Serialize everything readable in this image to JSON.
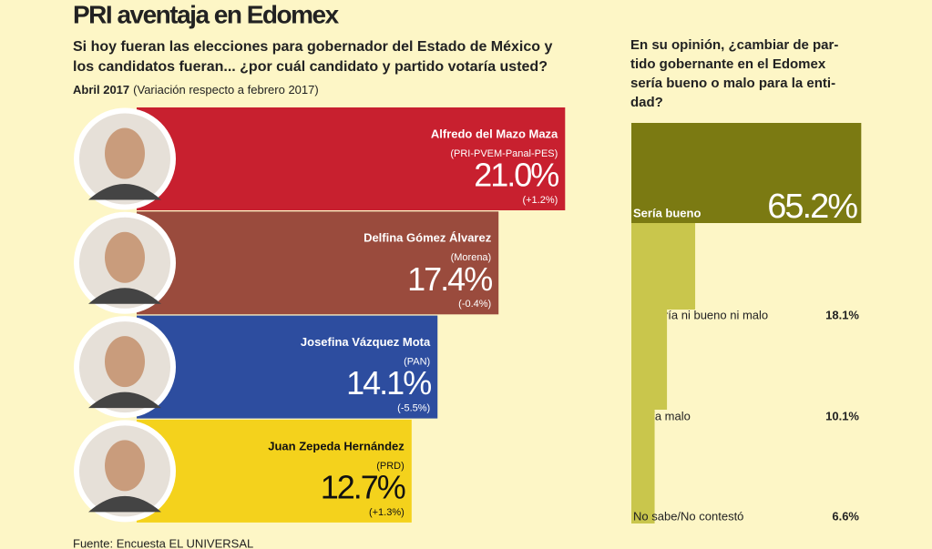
{
  "title": "PRI aventaja en Edomex",
  "source": "Fuente: Encuesta EL UNIVERSAL",
  "chart_data": [
    {
      "type": "hbar",
      "title": [
        "Si hoy fueran las elecciones para gobernador del Estado de México y",
        "los candidatos fueran... ¿por cuál candidato y partido votaría usted?"
      ],
      "date": "Abril 2017",
      "subtitle": "(Variación respecto a febrero 2017)",
      "categories": [
        "Alfredo del Mazo Maza",
        "Delfina Gómez Álvarez",
        "Josefina Vázquez Mota",
        "Juan Zepeda Hernández"
      ],
      "parties": [
        "(PRI-PVEM-Panal-PES)",
        "(Morena)",
        "(PAN)",
        "(PRD)"
      ],
      "values": [
        21.0,
        17.4,
        14.1,
        12.7
      ],
      "value_labels": [
        "21.0%",
        "17.4%",
        "14.1%",
        "12.7%"
      ],
      "changes": [
        "(+1.2%)",
        "(-0.4%)",
        "(-5.5%)",
        "(+1.3%)"
      ],
      "colors": [
        "#c8202f",
        "#9a4b3d",
        "#2d4d9f",
        "#f4d21c"
      ]
    },
    {
      "type": "step",
      "title": [
        "En su opinión, ¿cambiar de par-",
        "tido gobernante en el Edomex",
        "sería bueno o malo para la enti-",
        "dad?"
      ],
      "categories": [
        "Sería bueno",
        "No sería ni bueno ni malo",
        "Sería malo",
        "No sabe/No contestó"
      ],
      "values": [
        65.2,
        18.1,
        10.1,
        6.6
      ],
      "value_labels": [
        "65.2%",
        "18.1%",
        "10.1%",
        "6.6%"
      ],
      "colors": [
        "#7b7a12",
        "#c9c64c",
        "#c9c64c",
        "#c9c64c"
      ]
    }
  ]
}
